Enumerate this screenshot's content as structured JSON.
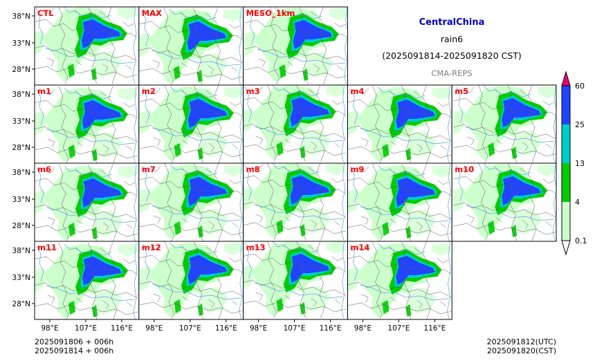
{
  "header": {
    "region": "CentralChina",
    "variable": "rain6",
    "period": "(2025091814-2025091820 CST)",
    "source": "CMA-REPS",
    "region_color": "#0000cc",
    "source_color": "#808080"
  },
  "panels": [
    {
      "label": "CTL",
      "row": 0,
      "col": 0
    },
    {
      "label": "MAX",
      "row": 0,
      "col": 1
    },
    {
      "label": "MESO_1km",
      "row": 0,
      "col": 2
    },
    {
      "label": "m1",
      "row": 1,
      "col": 0
    },
    {
      "label": "m2",
      "row": 1,
      "col": 1
    },
    {
      "label": "m3",
      "row": 1,
      "col": 2
    },
    {
      "label": "m4",
      "row": 1,
      "col": 3
    },
    {
      "label": "m5",
      "row": 1,
      "col": 4
    },
    {
      "label": "m6",
      "row": 2,
      "col": 0
    },
    {
      "label": "m7",
      "row": 2,
      "col": 1
    },
    {
      "label": "m8",
      "row": 2,
      "col": 2
    },
    {
      "label": "m9",
      "row": 2,
      "col": 3
    },
    {
      "label": "m10",
      "row": 2,
      "col": 4
    },
    {
      "label": "m11",
      "row": 3,
      "col": 0
    },
    {
      "label": "m12",
      "row": 3,
      "col": 1
    },
    {
      "label": "m13",
      "row": 3,
      "col": 2
    },
    {
      "label": "m14",
      "row": 3,
      "col": 3
    }
  ],
  "lat_ticks": [
    "38°N",
    "33°N",
    "28°N"
  ],
  "lon_ticks": [
    "98°E",
    "107°E",
    "116°E"
  ],
  "colorbar": {
    "levels": [
      "0.1",
      "4",
      "13",
      "25",
      "60"
    ],
    "colors": [
      "#ccffcc",
      "#00cc00",
      "#00cccc",
      "#2244ff",
      "#ee0077"
    ],
    "under_color": "#ffffff"
  },
  "footer": {
    "init_line1": "2025091806  +  006h",
    "init_line2": "2025091814  +  006h",
    "valid_utc": "2025091812(UTC)",
    "valid_cst": "2025091820(CST)"
  },
  "colors": {
    "panel_label": "#ff0000",
    "light_green": "#ccffcc",
    "green": "#00cc00",
    "cyan": "#00cccc",
    "blue": "#2244ff",
    "river": "#5aa0e0",
    "border": "#555555"
  }
}
